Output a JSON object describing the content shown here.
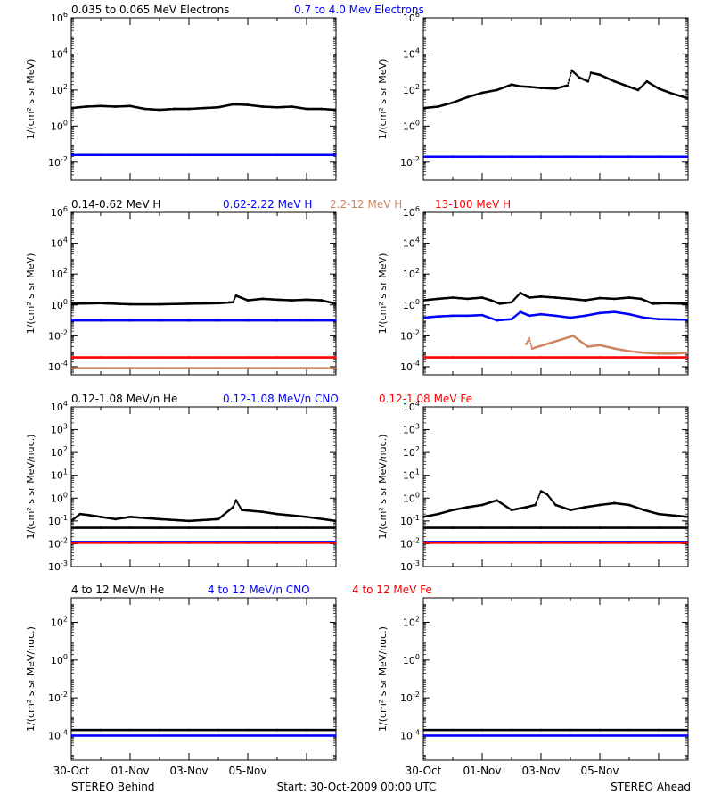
{
  "colors": {
    "black": "#000000",
    "blue": "#0000ff",
    "tan": "#cd8562",
    "red": "#ff0000"
  },
  "footer": {
    "left": "STEREO Behind",
    "center": "Start: 30-Oct-2009 00:00 UTC",
    "right": "STEREO Ahead"
  },
  "chart_data": [
    {
      "type": "scatter",
      "panel": "row1-behind",
      "title_items": [
        {
          "text": "0.035 to 0.065 MeV Electrons",
          "color": "black"
        },
        {
          "text": "0.7 to 4.0 Mev Electrons",
          "color": "blue"
        }
      ],
      "ylabel": "1/(cm² s sr MeV)",
      "yscale": "log",
      "ylim": [
        0.001,
        1000000
      ],
      "yticks": [
        {
          "exp": -2,
          "label": "10-2"
        },
        {
          "exp": 0,
          "label": "100"
        },
        {
          "exp": 2,
          "label": "102"
        },
        {
          "exp": 4,
          "label": "104"
        },
        {
          "exp": 6,
          "label": "106"
        }
      ],
      "xlim": [
        0,
        9
      ],
      "xticklabels": [
        "30-Oct",
        "01-Nov",
        "03-Nov",
        "05-Nov"
      ],
      "series": [
        {
          "color": "black",
          "x": [
            0,
            0.5,
            1,
            1.5,
            2,
            2.5,
            3,
            3.5,
            4,
            4.5,
            5,
            5.5,
            6,
            6.5,
            7,
            7.5,
            8,
            8.5,
            9
          ],
          "y": [
            10,
            12,
            13,
            12,
            13,
            9,
            8,
            9,
            9,
            10,
            11,
            16,
            15,
            12,
            11,
            12,
            9,
            9,
            8
          ]
        },
        {
          "color": "blue",
          "x": [
            0,
            1,
            2,
            3,
            4,
            5,
            6,
            7,
            8,
            9
          ],
          "y": [
            0.025,
            0.025,
            0.025,
            0.025,
            0.025,
            0.025,
            0.025,
            0.025,
            0.025,
            0.025
          ]
        }
      ]
    },
    {
      "type": "scatter",
      "panel": "row1-ahead",
      "title_items": [],
      "ylabel": "1/(cm² s sr MeV)",
      "yscale": "log",
      "ylim": [
        0.001,
        1000000
      ],
      "yticks": [
        {
          "exp": -2,
          "label": "10-2"
        },
        {
          "exp": 0,
          "label": "100"
        },
        {
          "exp": 2,
          "label": "102"
        },
        {
          "exp": 4,
          "label": "104"
        },
        {
          "exp": 6,
          "label": "106"
        }
      ],
      "xlim": [
        0,
        9
      ],
      "xticklabels": [
        "30-Oct",
        "01-Nov",
        "03-Nov",
        "05-Nov"
      ],
      "series": [
        {
          "color": "black",
          "x": [
            0,
            0.5,
            1,
            1.5,
            2,
            2.5,
            3,
            3.3,
            3.6,
            4,
            4.5,
            4.9,
            5.05,
            5.3,
            5.6,
            5.7,
            6,
            6.5,
            7,
            7.3,
            7.6,
            8,
            8.5,
            9
          ],
          "y": [
            10,
            12,
            20,
            40,
            70,
            100,
            200,
            160,
            150,
            130,
            120,
            180,
            1200,
            500,
            300,
            900,
            700,
            300,
            150,
            100,
            300,
            120,
            60,
            35
          ]
        },
        {
          "color": "blue",
          "x": [
            0,
            1,
            2,
            3,
            4,
            5,
            6,
            7,
            8,
            9
          ],
          "y": [
            0.02,
            0.02,
            0.02,
            0.02,
            0.02,
            0.02,
            0.02,
            0.02,
            0.02,
            0.02
          ]
        }
      ]
    },
    {
      "type": "scatter",
      "panel": "row2-behind",
      "title_items": [
        {
          "text": "0.14-0.62 MeV H",
          "color": "black"
        },
        {
          "text": "0.62-2.22 MeV H",
          "color": "blue"
        },
        {
          "text": "2.2-12 MeV H",
          "color": "tan"
        },
        {
          "text": "13-100 MeV H",
          "color": "red"
        }
      ],
      "ylabel": "1/(cm² s sr MeV)",
      "yscale": "log",
      "ylim": [
        3e-05,
        1000000
      ],
      "yticks": [
        {
          "exp": -4,
          "label": "10-4"
        },
        {
          "exp": -2,
          "label": "10-2"
        },
        {
          "exp": 0,
          "label": "100"
        },
        {
          "exp": 2,
          "label": "102"
        },
        {
          "exp": 4,
          "label": "104"
        },
        {
          "exp": 6,
          "label": "106"
        }
      ],
      "xlim": [
        0,
        9
      ],
      "xticklabels": [
        "30-Oct",
        "01-Nov",
        "03-Nov",
        "05-Nov"
      ],
      "series": [
        {
          "color": "black",
          "x": [
            0,
            1,
            2,
            3,
            4,
            5,
            5.5,
            5.6,
            6,
            6.5,
            7,
            7.5,
            8,
            8.5,
            9
          ],
          "y": [
            1.2,
            1.3,
            1.1,
            1.1,
            1.2,
            1.3,
            1.5,
            4,
            2,
            2.5,
            2.2,
            2,
            2.2,
            2.0,
            1.2
          ]
        },
        {
          "color": "blue",
          "x": [
            0,
            1,
            2,
            3,
            4,
            5,
            6,
            7,
            8,
            9
          ],
          "y": [
            0.1,
            0.1,
            0.1,
            0.1,
            0.1,
            0.1,
            0.1,
            0.1,
            0.1,
            0.1
          ]
        },
        {
          "color": "red",
          "x": [
            0,
            1,
            2,
            3,
            4,
            5,
            6,
            7,
            8,
            9
          ],
          "y": [
            0.0004,
            0.0004,
            0.0004,
            0.0004,
            0.0004,
            0.0004,
            0.0004,
            0.0004,
            0.0004,
            0.0004
          ]
        },
        {
          "color": "tan",
          "x": [
            0,
            1,
            2,
            3,
            4,
            5,
            6,
            7,
            8,
            9
          ],
          "y": [
            8e-05,
            8e-05,
            8e-05,
            8e-05,
            8e-05,
            8e-05,
            8e-05,
            8e-05,
            8e-05,
            8e-05
          ]
        }
      ]
    },
    {
      "type": "scatter",
      "panel": "row2-ahead",
      "title_items": [],
      "ylabel": "1/(cm² s sr MeV)",
      "yscale": "log",
      "ylim": [
        3e-05,
        1000000
      ],
      "yticks": [
        {
          "exp": -4,
          "label": "10-4"
        },
        {
          "exp": -2,
          "label": "10-2"
        },
        {
          "exp": 0,
          "label": "100"
        },
        {
          "exp": 2,
          "label": "102"
        },
        {
          "exp": 4,
          "label": "104"
        },
        {
          "exp": 6,
          "label": "106"
        }
      ],
      "xlim": [
        0,
        9
      ],
      "xticklabels": [
        "30-Oct",
        "01-Nov",
        "03-Nov",
        "05-Nov"
      ],
      "series": [
        {
          "color": "black",
          "x": [
            0,
            0.5,
            1,
            1.5,
            2,
            2.3,
            2.6,
            3,
            3.3,
            3.6,
            4,
            4.5,
            5,
            5.5,
            6,
            6.5,
            7,
            7.4,
            7.8,
            8.2,
            9
          ],
          "y": [
            2,
            2.5,
            3,
            2.5,
            3,
            2,
            1.2,
            1.5,
            6,
            3,
            3.5,
            3,
            2.5,
            2,
            2.8,
            2.5,
            3,
            2.5,
            1.2,
            1.3,
            1.2
          ]
        },
        {
          "color": "blue",
          "x": [
            0,
            0.5,
            1,
            1.5,
            2,
            2.5,
            3,
            3.3,
            3.6,
            4,
            4.5,
            5,
            5.5,
            6,
            6.5,
            7,
            7.5,
            8,
            9
          ],
          "y": [
            0.15,
            0.18,
            0.2,
            0.2,
            0.22,
            0.1,
            0.12,
            0.35,
            0.2,
            0.25,
            0.2,
            0.15,
            0.2,
            0.3,
            0.35,
            0.25,
            0.15,
            0.12,
            0.11
          ]
        },
        {
          "color": "tan",
          "x": [
            3.5,
            3.6,
            3.7,
            5.1,
            5.3,
            5.6,
            6,
            6.5,
            7,
            7.5,
            8,
            8.5,
            9
          ],
          "y": [
            0.003,
            0.007,
            0.0015,
            0.01,
            0.005,
            0.002,
            0.0025,
            0.0015,
            0.001,
            0.0008,
            0.0007,
            0.0007,
            0.0008
          ]
        },
        {
          "color": "red",
          "x": [
            0,
            1,
            2,
            3,
            4,
            5,
            6,
            7,
            8,
            9
          ],
          "y": [
            0.0004,
            0.0004,
            0.0004,
            0.0004,
            0.0004,
            0.0004,
            0.0004,
            0.0004,
            0.0004,
            0.0004
          ]
        }
      ]
    },
    {
      "type": "scatter",
      "panel": "row3-behind",
      "title_items": [
        {
          "text": "0.12-1.08 MeV/n He",
          "color": "black"
        },
        {
          "text": "0.12-1.08 MeV/n CNO",
          "color": "blue"
        },
        {
          "text": "0.12-1.08 MeV Fe",
          "color": "red"
        }
      ],
      "ylabel": "1/(cm² s sr MeV/nuc.)",
      "yscale": "log",
      "ylim": [
        0.001,
        10000
      ],
      "yticks": [
        {
          "exp": -3,
          "label": "10-3"
        },
        {
          "exp": -2,
          "label": "10-2"
        },
        {
          "exp": -1,
          "label": "10-1"
        },
        {
          "exp": 0,
          "label": "100"
        },
        {
          "exp": 1,
          "label": "101"
        },
        {
          "exp": 2,
          "label": "102"
        },
        {
          "exp": 3,
          "label": "103"
        },
        {
          "exp": 4,
          "label": "104"
        }
      ],
      "xlim": [
        0,
        9
      ],
      "xticklabels": [
        "30-Oct",
        "01-Nov",
        "03-Nov",
        "05-Nov"
      ],
      "series": [
        {
          "color": "black",
          "x": [
            0,
            0.3,
            0.6,
            1,
            1.5,
            2,
            3,
            4,
            5,
            5.5,
            5.6,
            5.8,
            6.5,
            7,
            8,
            9
          ],
          "y": [
            0.1,
            0.2,
            0.18,
            0.15,
            0.12,
            0.15,
            0.12,
            0.1,
            0.12,
            0.4,
            0.8,
            0.3,
            0.25,
            0.2,
            0.15,
            0.1
          ]
        },
        {
          "color": "black",
          "x": [
            0,
            1,
            2,
            3,
            4,
            5,
            6,
            7,
            8,
            9
          ],
          "y": [
            0.05,
            0.05,
            0.05,
            0.05,
            0.05,
            0.05,
            0.05,
            0.05,
            0.05,
            0.05
          ]
        },
        {
          "color": "blue",
          "x": [
            0,
            1,
            2,
            3,
            4,
            5,
            6,
            7,
            8,
            9
          ],
          "y": [
            0.012,
            0.012,
            0.012,
            0.012,
            0.012,
            0.012,
            0.012,
            0.012,
            0.012,
            0.012
          ]
        },
        {
          "color": "red",
          "x": [
            0,
            1,
            2,
            3,
            4,
            5,
            6,
            7,
            8,
            9
          ],
          "y": [
            0.011,
            0.011,
            0.011,
            0.011,
            0.011,
            0.011,
            0.011,
            0.011,
            0.011,
            0.011
          ]
        }
      ]
    },
    {
      "type": "scatter",
      "panel": "row3-ahead",
      "title_items": [],
      "ylabel": "1/(cm² s sr MeV/nuc.)",
      "yscale": "log",
      "ylim": [
        0.001,
        10000
      ],
      "yticks": [
        {
          "exp": -3,
          "label": "10-3"
        },
        {
          "exp": -2,
          "label": "10-2"
        },
        {
          "exp": -1,
          "label": "10-1"
        },
        {
          "exp": 0,
          "label": "100"
        },
        {
          "exp": 1,
          "label": "101"
        },
        {
          "exp": 2,
          "label": "102"
        },
        {
          "exp": 3,
          "label": "103"
        },
        {
          "exp": 4,
          "label": "104"
        }
      ],
      "xlim": [
        0,
        9
      ],
      "xticklabels": [
        "30-Oct",
        "01-Nov",
        "03-Nov",
        "05-Nov"
      ],
      "series": [
        {
          "color": "black",
          "x": [
            0,
            0.5,
            1,
            1.5,
            2,
            2.5,
            3,
            3.5,
            3.8,
            4,
            4.2,
            4.5,
            5,
            5.5,
            6,
            6.5,
            7,
            7.5,
            8,
            9
          ],
          "y": [
            0.15,
            0.2,
            0.3,
            0.4,
            0.5,
            0.8,
            0.3,
            0.4,
            0.5,
            2.0,
            1.5,
            0.5,
            0.3,
            0.4,
            0.5,
            0.6,
            0.5,
            0.3,
            0.2,
            0.15
          ]
        },
        {
          "color": "black",
          "x": [
            0,
            1,
            2,
            3,
            4,
            5,
            6,
            7,
            8,
            9
          ],
          "y": [
            0.05,
            0.05,
            0.05,
            0.05,
            0.05,
            0.05,
            0.05,
            0.05,
            0.05,
            0.05
          ]
        },
        {
          "color": "blue",
          "x": [
            0,
            1,
            2,
            3,
            4,
            5,
            6,
            7,
            8,
            9
          ],
          "y": [
            0.012,
            0.012,
            0.012,
            0.012,
            0.012,
            0.012,
            0.012,
            0.012,
            0.012,
            0.012
          ]
        },
        {
          "color": "red",
          "x": [
            0,
            1,
            2,
            3,
            4,
            5,
            6,
            7,
            8,
            9
          ],
          "y": [
            0.011,
            0.011,
            0.011,
            0.011,
            0.011,
            0.011,
            0.011,
            0.011,
            0.011,
            0.011
          ]
        }
      ]
    },
    {
      "type": "scatter",
      "panel": "row4-behind",
      "title_items": [
        {
          "text": "4 to 12 MeV/n He",
          "color": "black"
        },
        {
          "text": "4 to 12 MeV/n CNO",
          "color": "blue"
        },
        {
          "text": "4 to 12 MeV Fe",
          "color": "red"
        }
      ],
      "ylabel": "1/(cm² s sr MeV/nuc.)",
      "yscale": "log",
      "ylim": [
        5e-06,
        2000
      ],
      "yticks": [
        {
          "exp": -4,
          "label": "10-4"
        },
        {
          "exp": -2,
          "label": "10-2"
        },
        {
          "exp": 0,
          "label": "100"
        },
        {
          "exp": 2,
          "label": "102"
        }
      ],
      "xlim": [
        0,
        9
      ],
      "xticklabels": [
        "30-Oct",
        "01-Nov",
        "03-Nov",
        "05-Nov"
      ],
      "series": [
        {
          "color": "black",
          "x": [
            0,
            1,
            2,
            3,
            4,
            5,
            6,
            7,
            8,
            9
          ],
          "y": [
            0.0002,
            0.0002,
            0.0002,
            0.0002,
            0.0002,
            0.0002,
            0.0002,
            0.0002,
            0.0002,
            0.0002
          ]
        },
        {
          "color": "blue",
          "x": [
            0,
            9
          ],
          "y": [
            0.0001,
            0.0001
          ]
        }
      ]
    },
    {
      "type": "scatter",
      "panel": "row4-ahead",
      "title_items": [],
      "ylabel": "1/(cm² s sr MeV/nuc.)",
      "yscale": "log",
      "ylim": [
        5e-06,
        2000
      ],
      "yticks": [
        {
          "exp": -4,
          "label": "10-4"
        },
        {
          "exp": -2,
          "label": "10-2"
        },
        {
          "exp": 0,
          "label": "100"
        },
        {
          "exp": 2,
          "label": "102"
        }
      ],
      "xlim": [
        0,
        9
      ],
      "xticklabels": [
        "30-Oct",
        "01-Nov",
        "03-Nov",
        "05-Nov"
      ],
      "series": [
        {
          "color": "black",
          "x": [
            0,
            1,
            2,
            3,
            4,
            5,
            6,
            7,
            8,
            9
          ],
          "y": [
            0.0002,
            0.0002,
            0.0002,
            0.0002,
            0.0002,
            0.0002,
            0.0002,
            0.0002,
            0.0002,
            0.0002
          ]
        },
        {
          "color": "blue",
          "x": [
            0,
            9
          ],
          "y": [
            0.0001,
            0.0001
          ]
        }
      ]
    }
  ]
}
